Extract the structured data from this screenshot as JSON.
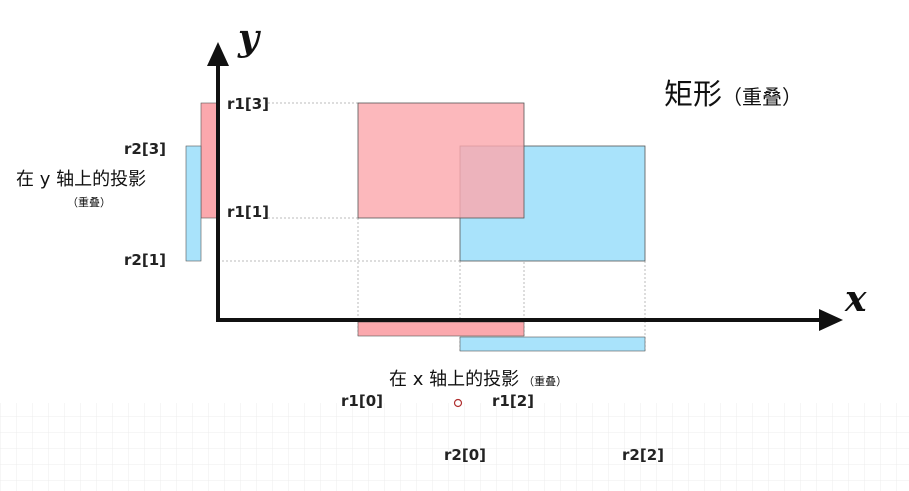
{
  "title": "矩形",
  "title_note": "（重叠）",
  "axes": {
    "x_label": "x",
    "y_label": "y"
  },
  "projections": {
    "y_caption": "在 y 轴上的投影",
    "y_note": "（重叠）",
    "x_caption": "在 x 轴上的投影",
    "x_note": "（重叠）"
  },
  "labels": {
    "r1_3": "r1[3]",
    "r1_1": "r1[1]",
    "r2_3": "r2[3]",
    "r2_1": "r2[1]",
    "r1_0": "r1[0]",
    "r1_2": "r1[2]",
    "r2_0": "r2[0]",
    "r2_2": "r2[2]"
  },
  "colors": {
    "rect1": "#fba8ad",
    "rect2": "#a9e3fb",
    "axis": "#111111",
    "guide": "#bbbbbb",
    "grid": "#ececec"
  }
}
